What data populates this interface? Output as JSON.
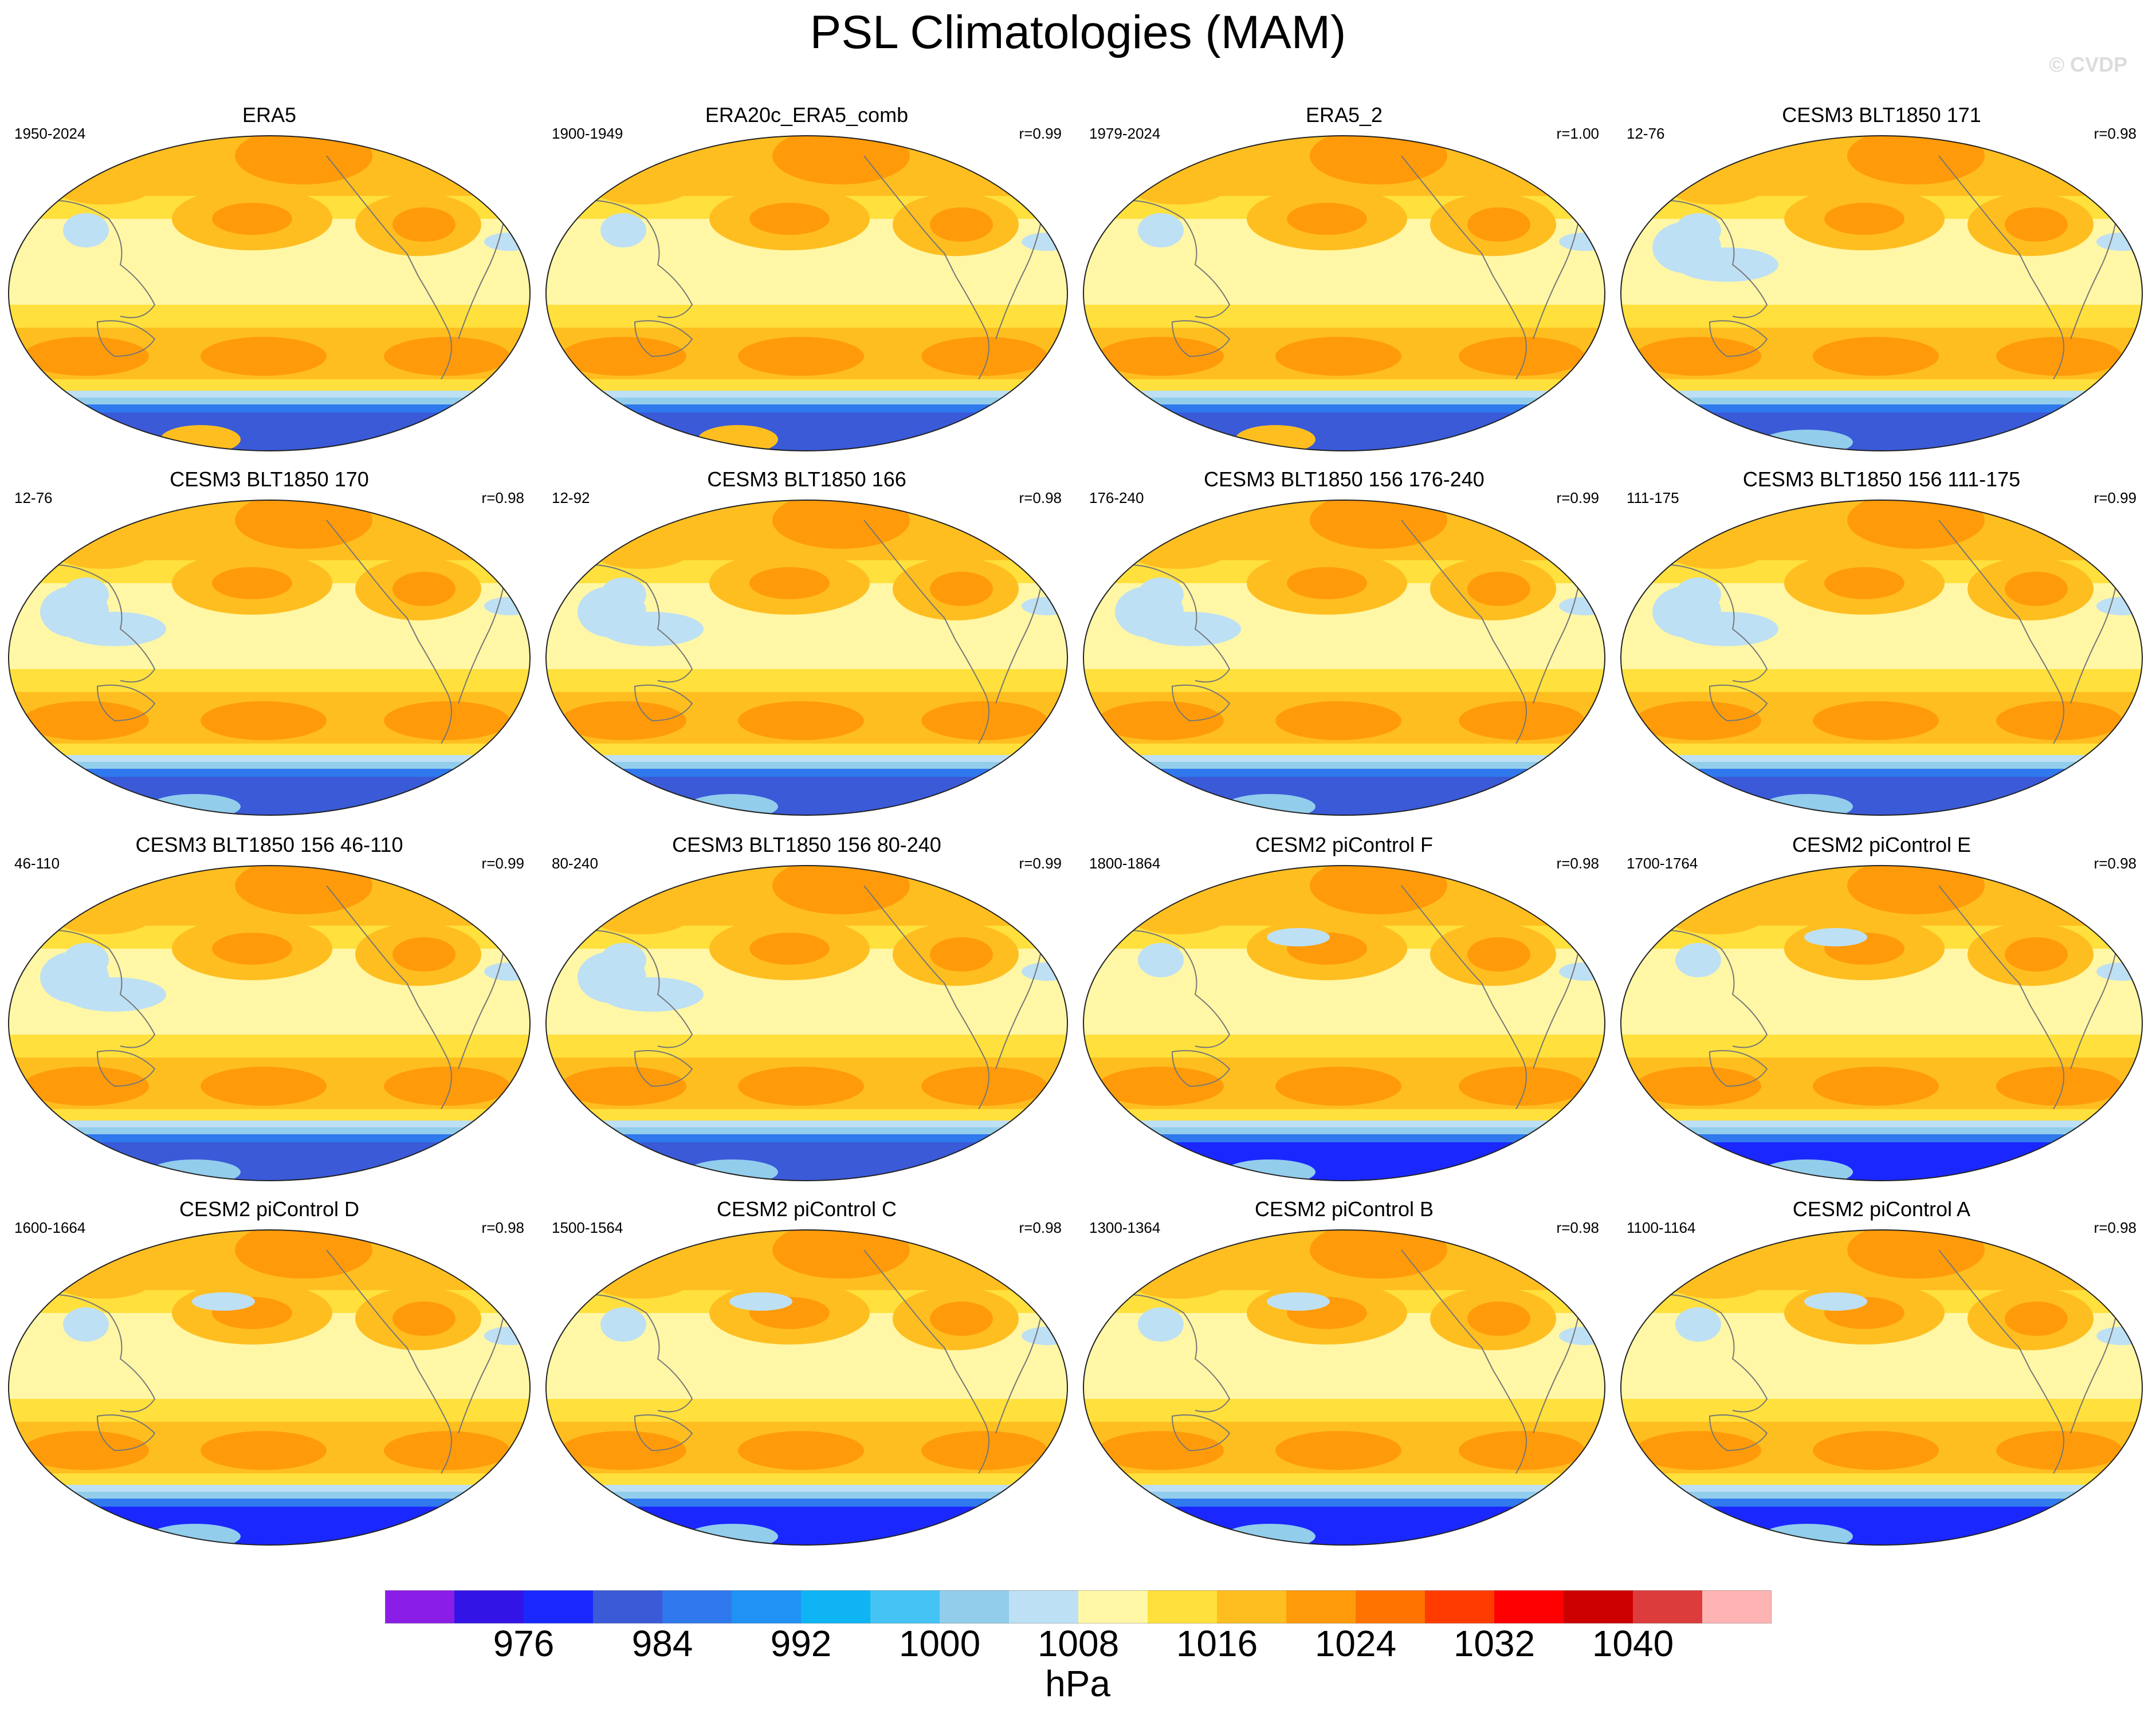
{
  "title": "PSL Climatologies (MAM)",
  "watermark": "© CVDP",
  "panels": [
    {
      "title": "ERA5",
      "years": "1950-2024",
      "r": ""
    },
    {
      "title": "ERA20c_ERA5_comb",
      "years": "1900-1949",
      "r": "r=0.99"
    },
    {
      "title": "ERA5_2",
      "years": "1979-2024",
      "r": "r=1.00"
    },
    {
      "title": "CESM3 BLT1850 171",
      "years": "12-76",
      "r": "r=0.98"
    },
    {
      "title": "CESM3 BLT1850 170",
      "years": "12-76",
      "r": "r=0.98"
    },
    {
      "title": "CESM3 BLT1850 166",
      "years": "12-92",
      "r": "r=0.98"
    },
    {
      "title": "CESM3 BLT1850 156 176-240",
      "years": "176-240",
      "r": "r=0.99"
    },
    {
      "title": "CESM3 BLT1850 156 111-175",
      "years": "111-175",
      "r": "r=0.99"
    },
    {
      "title": "CESM3 BLT1850 156 46-110",
      "years": "46-110",
      "r": "r=0.99"
    },
    {
      "title": "CESM3 BLT1850 156 80-240",
      "years": "80-240",
      "r": "r=0.99"
    },
    {
      "title": "CESM2 piControl F",
      "years": "1800-1864",
      "r": "r=0.98"
    },
    {
      "title": "CESM2 piControl E",
      "years": "1700-1764",
      "r": "r=0.98"
    },
    {
      "title": "CESM2 piControl D",
      "years": "1600-1664",
      "r": "r=0.98"
    },
    {
      "title": "CESM2 piControl C",
      "years": "1500-1564",
      "r": "r=0.98"
    },
    {
      "title": "CESM2 piControl B",
      "years": "1300-1364",
      "r": "r=0.98"
    },
    {
      "title": "CESM2 piControl A",
      "years": "1100-1164",
      "r": "r=0.98"
    }
  ],
  "colorbar": {
    "units": "hPa",
    "labels": [
      "976",
      "984",
      "992",
      "1000",
      "1008",
      "1016",
      "1024",
      "1032",
      "1040"
    ],
    "colors": [
      "#8b1ee6",
      "#3314e6",
      "#1a28ff",
      "#3a5ad8",
      "#2f78ee",
      "#2091f5",
      "#0fb4f5",
      "#44c3f5",
      "#92cdec",
      "#bee0f4",
      "#fff7a6",
      "#ffe03c",
      "#ffbe20",
      "#ff9b0a",
      "#ff7300",
      "#ff3c00",
      "#ff0000",
      "#cc0000",
      "#dc3c3c",
      "#ffb4b4"
    ]
  },
  "map_colors": {
    "pale": "#fff7a6",
    "yellow": "#ffe03c",
    "orange": "#ffbe20",
    "dark_orange": "#ff9b0a",
    "light_blue": "#bee0f4",
    "sky": "#92cdec",
    "blue": "#2f78ee",
    "mid_blue": "#3a5ad8",
    "deep_blue": "#1a28ff"
  }
}
